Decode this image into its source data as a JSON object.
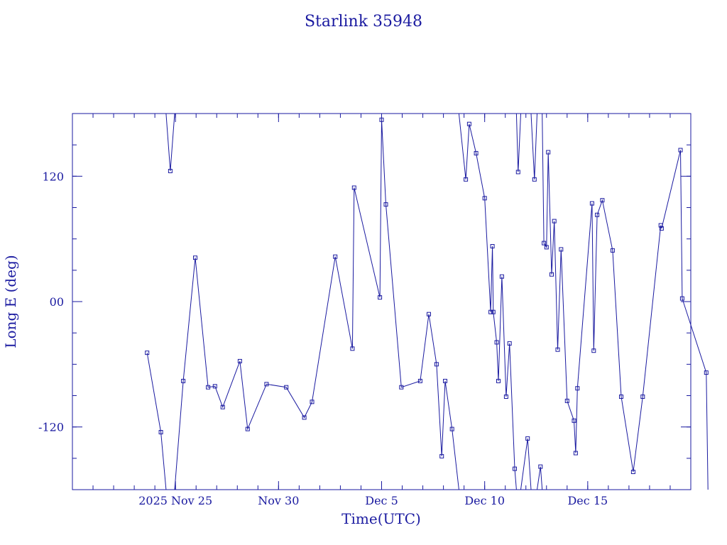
{
  "chart_data": {
    "type": "line",
    "title": "Starlink 35948",
    "xlabel": "Time(UTC)",
    "ylabel": "Long E (deg)",
    "xlim": [
      "2025-11-20",
      "2025-12-20"
    ],
    "ylim": [
      -180,
      180
    ],
    "grid": false,
    "legend": "none",
    "x_ticks": [
      {
        "date": "2025-11-25",
        "label": "2025 Nov 25"
      },
      {
        "date": "2025-11-30",
        "label": "Nov 30"
      },
      {
        "date": "2025-12-05",
        "label": "Dec  5"
      },
      {
        "date": "2025-12-10",
        "label": "Dec 10"
      },
      {
        "date": "2025-12-15",
        "label": "Dec 15"
      }
    ],
    "y_ticks": [
      {
        "value": 120,
        "label": "120"
      },
      {
        "value": 0,
        "label": "00"
      },
      {
        "value": -120,
        "label": "-120"
      }
    ],
    "colors": {
      "line": "#1a1aa0",
      "axis": "#1a1aa0",
      "text": "#1a1aa0"
    },
    "series": [
      {
        "marker": "square",
        "points": [
          {
            "x": "2025-11-23 15:00",
            "y": -49
          },
          {
            "x": "2025-11-24 07:00",
            "y": -125
          },
          {
            "x": "2025-11-24 13:00",
            "y": -180,
            "marker": false
          },
          {
            "x": "2025-11-24 13:00",
            "y": 180,
            "marker": false
          },
          {
            "x": "2025-11-24 18:00",
            "y": 125
          },
          {
            "x": "2025-11-24 23:00",
            "y": 180,
            "marker": false
          },
          {
            "x": "2025-11-24 23:00",
            "y": -180,
            "marker": false
          },
          {
            "x": "2025-11-25 09:00",
            "y": -76
          },
          {
            "x": "2025-11-25 23:00",
            "y": 42
          },
          {
            "x": "2025-11-26 14:00",
            "y": -82
          },
          {
            "x": "2025-11-26 22:00",
            "y": -81
          },
          {
            "x": "2025-11-27 07:00",
            "y": -101
          },
          {
            "x": "2025-11-28 03:00",
            "y": -57
          },
          {
            "x": "2025-11-28 12:00",
            "y": -122
          },
          {
            "x": "2025-11-29 10:00",
            "y": -79
          },
          {
            "x": "2025-11-30 09:00",
            "y": -82
          },
          {
            "x": "2025-12-01 06:00",
            "y": -111
          },
          {
            "x": "2025-12-01 15:00",
            "y": -96
          },
          {
            "x": "2025-12-02 18:00",
            "y": 43
          },
          {
            "x": "2025-12-03 14:00",
            "y": -45
          },
          {
            "x": "2025-12-03 16:00",
            "y": 109
          },
          {
            "x": "2025-12-04 22:00",
            "y": 4
          },
          {
            "x": "2025-12-05 00:00",
            "y": 174
          },
          {
            "x": "2025-12-05 05:00",
            "y": 93
          },
          {
            "x": "2025-12-05 23:00",
            "y": -82
          },
          {
            "x": "2025-12-06 21:00",
            "y": -76
          },
          {
            "x": "2025-12-07 07:00",
            "y": -12
          },
          {
            "x": "2025-12-07 16:00",
            "y": -60
          },
          {
            "x": "2025-12-07 22:00",
            "y": -148
          },
          {
            "x": "2025-12-08 02:00",
            "y": -76
          },
          {
            "x": "2025-12-08 10:00",
            "y": -122
          },
          {
            "x": "2025-12-08 18:00",
            "y": -180,
            "marker": false
          },
          {
            "x": "2025-12-08 18:00",
            "y": 180,
            "marker": false
          },
          {
            "x": "2025-12-09 02:00",
            "y": 117
          },
          {
            "x": "2025-12-09 06:00",
            "y": 170
          },
          {
            "x": "2025-12-09 14:00",
            "y": 142
          },
          {
            "x": "2025-12-10 00:00",
            "y": 99
          },
          {
            "x": "2025-12-10 07:00",
            "y": -10
          },
          {
            "x": "2025-12-10 09:00",
            "y": 53
          },
          {
            "x": "2025-12-10 10:00",
            "y": -10
          },
          {
            "x": "2025-12-10 14:00",
            "y": -39
          },
          {
            "x": "2025-12-10 16:00",
            "y": -76
          },
          {
            "x": "2025-12-10 20:00",
            "y": 24
          },
          {
            "x": "2025-12-11 01:00",
            "y": -91
          },
          {
            "x": "2025-12-11 05:00",
            "y": -40
          },
          {
            "x": "2025-12-11 11:00",
            "y": -160
          },
          {
            "x": "2025-12-11 13:00",
            "y": -180,
            "marker": false
          },
          {
            "x": "2025-12-11 13:00",
            "y": 180,
            "marker": false
          },
          {
            "x": "2025-12-11 15:00",
            "y": 124
          },
          {
            "x": "2025-12-11 18:00",
            "y": 180,
            "marker": false
          },
          {
            "x": "2025-12-11 18:00",
            "y": -180,
            "marker": false
          },
          {
            "x": "2025-12-12 02:00",
            "y": -131
          },
          {
            "x": "2025-12-12 06:00",
            "y": -180,
            "marker": false
          },
          {
            "x": "2025-12-12 06:00",
            "y": 180,
            "marker": false
          },
          {
            "x": "2025-12-12 10:00",
            "y": 117
          },
          {
            "x": "2025-12-12 13:00",
            "y": 180,
            "marker": false
          },
          {
            "x": "2025-12-12 13:00",
            "y": -180,
            "marker": false
          },
          {
            "x": "2025-12-12 17:00",
            "y": -158
          },
          {
            "x": "2025-12-12 19:00",
            "y": -180,
            "marker": false
          },
          {
            "x": "2025-12-12 19:00",
            "y": 180,
            "marker": false
          },
          {
            "x": "2025-12-12 21:00",
            "y": 56
          },
          {
            "x": "2025-12-13 00:00",
            "y": 52
          },
          {
            "x": "2025-12-13 02:00",
            "y": 143
          },
          {
            "x": "2025-12-13 06:00",
            "y": 26
          },
          {
            "x": "2025-12-13 09:00",
            "y": 77
          },
          {
            "x": "2025-12-13 13:00",
            "y": -46
          },
          {
            "x": "2025-12-13 17:00",
            "y": 50
          },
          {
            "x": "2025-12-14 00:00",
            "y": -95
          },
          {
            "x": "2025-12-14 08:00",
            "y": -114
          },
          {
            "x": "2025-12-14 10:00",
            "y": -145
          },
          {
            "x": "2025-12-14 12:00",
            "y": -83
          },
          {
            "x": "2025-12-15 05:00",
            "y": 94
          },
          {
            "x": "2025-12-15 07:00",
            "y": -47
          },
          {
            "x": "2025-12-15 11:00",
            "y": 83
          },
          {
            "x": "2025-12-15 17:00",
            "y": 97
          },
          {
            "x": "2025-12-16 05:00",
            "y": 49
          },
          {
            "x": "2025-12-16 15:00",
            "y": -91
          },
          {
            "x": "2025-12-17 05:00",
            "y": -163
          },
          {
            "x": "2025-12-17 16:00",
            "y": -91
          },
          {
            "x": "2025-12-18 13:00",
            "y": 73
          },
          {
            "x": "2025-12-18 14:00",
            "y": 70
          },
          {
            "x": "2025-12-19 12:00",
            "y": 145
          },
          {
            "x": "2025-12-19 14:00",
            "y": 3
          },
          {
            "x": "2025-12-20 18:00",
            "y": -68
          },
          {
            "x": "2025-12-20 20:00",
            "y": -180,
            "marker": false
          }
        ]
      }
    ]
  }
}
